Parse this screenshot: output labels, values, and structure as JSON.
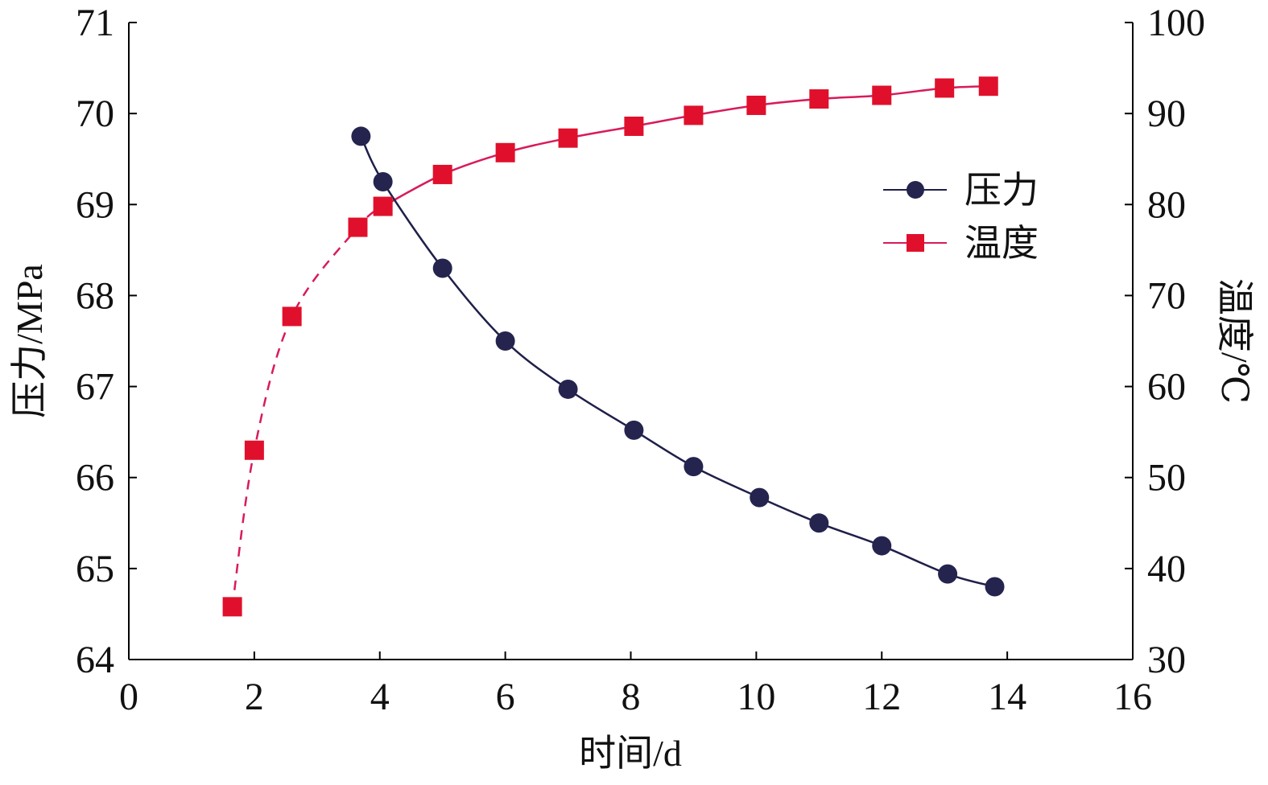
{
  "chart_data": {
    "type": "line",
    "title": "",
    "xlabel": "时间/d",
    "ylabel_left": "压力/MPa",
    "ylabel_right": "温度/℃",
    "xlim": [
      0,
      16
    ],
    "ylim_left": [
      64,
      71
    ],
    "ylim_right": [
      30,
      100
    ],
    "x_ticks": [
      "0",
      "2",
      "4",
      "6",
      "8",
      "10",
      "12",
      "14",
      "16"
    ],
    "y_left_ticks": [
      "64",
      "65",
      "66",
      "67",
      "68",
      "69",
      "70",
      "71"
    ],
    "y_right_ticks": [
      "30",
      "40",
      "50",
      "60",
      "70",
      "80",
      "90",
      "100"
    ],
    "grid": false,
    "legend_position": "upper-right",
    "series": [
      {
        "name": "压力",
        "axis": "left",
        "color": "#1f1f4a",
        "marker": "circle",
        "line_style": "solid",
        "x": [
          3.7,
          4.05,
          5.0,
          6.0,
          7.0,
          8.05,
          9.0,
          10.05,
          11.0,
          12.0,
          13.05,
          13.8
        ],
        "y": [
          69.75,
          69.25,
          68.3,
          67.5,
          66.97,
          66.52,
          66.12,
          65.78,
          65.5,
          65.25,
          64.94,
          64.8
        ]
      },
      {
        "name": "温度",
        "axis": "right",
        "color": "#e0102c",
        "line_color": "#d81b5a",
        "marker": "square",
        "line_style": "dashed-then-solid",
        "dashed_until_x": 4.05,
        "x": [
          1.65,
          2.0,
          2.6,
          3.65,
          4.05,
          5.0,
          6.0,
          7.0,
          8.05,
          9.0,
          10.0,
          11.0,
          12.0,
          13.0,
          13.7
        ],
        "y": [
          35.8,
          53.0,
          67.7,
          77.5,
          79.8,
          83.3,
          85.7,
          87.3,
          88.6,
          89.8,
          90.9,
          91.6,
          92.0,
          92.8,
          93.0
        ]
      }
    ]
  }
}
